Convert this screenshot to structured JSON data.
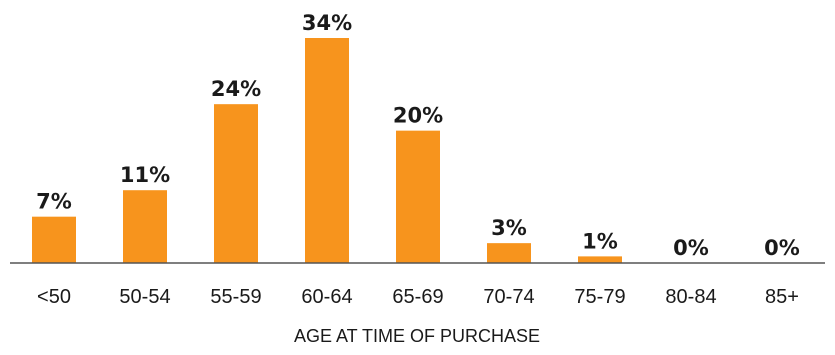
{
  "chart_data": {
    "type": "bar",
    "categories": [
      "<50",
      "50-54",
      "55-59",
      "60-64",
      "65-69",
      "70-74",
      "75-79",
      "80-84",
      "85+"
    ],
    "values": [
      7,
      11,
      24,
      34,
      20,
      3,
      1,
      0,
      0
    ],
    "data_labels": [
      "7%",
      "11%",
      "24%",
      "34%",
      "20%",
      "3%",
      "1%",
      "0%",
      "0%"
    ],
    "xlabel": "AGE AT TIME OF PURCHASE",
    "ylabel": "",
    "ylim": [
      0,
      35
    ],
    "grid": false,
    "bar_color": "#F7941D",
    "axis_color": "#555555"
  }
}
